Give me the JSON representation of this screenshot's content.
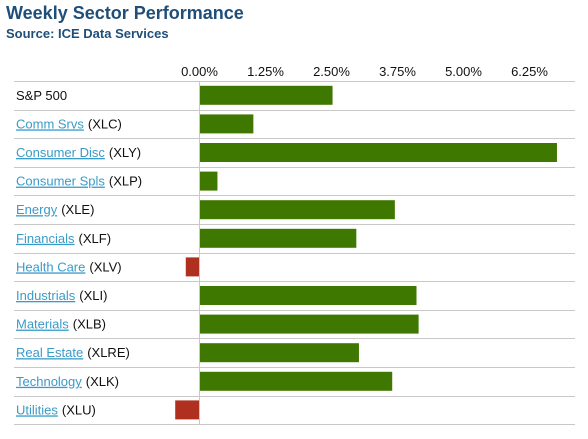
{
  "header": {
    "title": "Weekly Sector Performance",
    "subtitle": "Source: ICE Data Services"
  },
  "chart_data": {
    "type": "bar",
    "orientation": "horizontal",
    "title": "Weekly Sector Performance",
    "subtitle": "Source: ICE Data Services",
    "x_ticks": [
      "0.00%",
      "1.25%",
      "2.50%",
      "3.75%",
      "5.00%",
      "6.25%"
    ],
    "x_tick_values": [
      0,
      1.25,
      2.5,
      3.75,
      5.0,
      6.25
    ],
    "xlim": [
      -0.5,
      7.2
    ],
    "grid": false,
    "positive_color": "#3f7800",
    "negative_color": "#b03020",
    "categories": [
      {
        "name": "S&P 500",
        "ticker": "",
        "link": false,
        "value": 2.52
      },
      {
        "name": "Comm Srvs",
        "ticker": "(XLC)",
        "link": true,
        "value": 1.02
      },
      {
        "name": "Consumer Disc",
        "ticker": "(XLY)",
        "link": true,
        "value": 6.77
      },
      {
        "name": "Consumer Spls",
        "ticker": "(XLP)",
        "link": true,
        "value": 0.34
      },
      {
        "name": "Energy",
        "ticker": "(XLE)",
        "link": true,
        "value": 3.7
      },
      {
        "name": "Financials",
        "ticker": "(XLF)",
        "link": true,
        "value": 2.97
      },
      {
        "name": "Health Care",
        "ticker": "(XLV)",
        "link": true,
        "value": -0.26
      },
      {
        "name": "Industrials",
        "ticker": "(XLI)",
        "link": true,
        "value": 4.11
      },
      {
        "name": "Materials",
        "ticker": "(XLB)",
        "link": true,
        "value": 4.15
      },
      {
        "name": "Real Estate",
        "ticker": "(XLRE)",
        "link": true,
        "value": 3.02
      },
      {
        "name": "Technology",
        "ticker": "(XLK)",
        "link": true,
        "value": 3.65
      },
      {
        "name": "Utilities",
        "ticker": "(XLU)",
        "link": true,
        "value": -0.46
      }
    ]
  }
}
